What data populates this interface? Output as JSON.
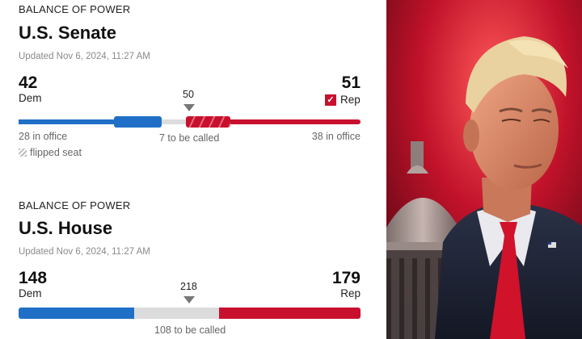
{
  "senate": {
    "eyebrow": "BALANCE OF POWER",
    "title": "U.S. Senate",
    "updated": "Updated Nov 6, 2024, 11:27 AM",
    "dem_count": "42",
    "dem_label": "Dem",
    "rep_count": "51",
    "rep_label": "Rep",
    "majority": "50",
    "dem_in_office": "28 in office",
    "to_be_called": "7 to be called",
    "rep_in_office": "38 in office",
    "flipped_legend": "flipped seat",
    "rep_checkmark": "✓"
  },
  "house": {
    "eyebrow": "BALANCE OF POWER",
    "title": "U.S. House",
    "updated": "Updated Nov 6, 2024, 11:27 AM",
    "dem_count": "148",
    "dem_label": "Dem",
    "rep_count": "179",
    "rep_label": "Rep",
    "majority": "218",
    "to_be_called": "108 to be called"
  },
  "colors": {
    "dem": "#1f6fc6",
    "rep": "#c8102e",
    "uncalled": "#dcdcdc"
  }
}
